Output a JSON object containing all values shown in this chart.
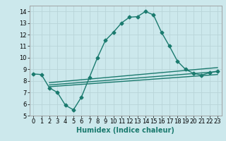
{
  "title": "",
  "xlabel": "Humidex (Indice chaleur)",
  "xlim": [
    -0.5,
    23.5
  ],
  "ylim": [
    5,
    14.5
  ],
  "yticks": [
    5,
    6,
    7,
    8,
    9,
    10,
    11,
    12,
    13,
    14
  ],
  "xticks": [
    0,
    1,
    2,
    3,
    4,
    5,
    6,
    7,
    8,
    9,
    10,
    11,
    12,
    13,
    14,
    15,
    16,
    17,
    18,
    19,
    20,
    21,
    22,
    23
  ],
  "background_color": "#cce8ec",
  "grid_color": "#b8d4d8",
  "line_color": "#1a7a6e",
  "main_x": [
    0,
    1,
    2,
    3,
    4,
    5,
    6,
    7,
    8,
    9,
    10,
    11,
    12,
    13,
    14,
    15,
    16,
    17,
    18,
    19,
    20,
    21,
    22,
    23
  ],
  "main_y": [
    8.6,
    8.55,
    7.4,
    7.0,
    5.9,
    5.5,
    6.6,
    8.3,
    10.0,
    11.5,
    12.2,
    13.0,
    13.5,
    13.55,
    14.0,
    13.7,
    12.2,
    11.0,
    9.7,
    9.0,
    8.65,
    8.5,
    8.7,
    8.85
  ],
  "line1_x": [
    2,
    23
  ],
  "line1_y": [
    7.5,
    8.55
  ],
  "line2_x": [
    2,
    23
  ],
  "line2_y": [
    7.65,
    8.8
  ],
  "line3_x": [
    2,
    23
  ],
  "line3_y": [
    7.85,
    9.15
  ],
  "marker": "D",
  "markersize": 2.5,
  "linewidth": 1.0,
  "xlabel_fontsize": 7,
  "tick_fontsize": 6
}
